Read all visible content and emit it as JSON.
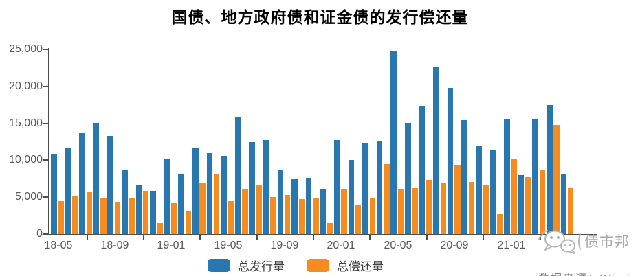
{
  "title": "国债、地方政府债和证金债的发行偿还量",
  "colors": {
    "issuance": "#2878AF",
    "repayment": "#F68B1F",
    "axis": "#4D4D4D",
    "tick_label": "#595959",
    "watermark": "#A8A8A8"
  },
  "legend": [
    {
      "name": "总发行量"
    },
    {
      "name": "总偿还量"
    }
  ],
  "watermark": {
    "brand": "债市邦",
    "icon": "wechat-chat-bubbles-icon"
  },
  "source_note": "数据来源：Wind",
  "y_axis": {
    "tick_labels": [
      "0",
      "5,000",
      "10,000",
      "15,000",
      "20,000",
      "25,000"
    ],
    "max": 25000
  },
  "x_axis": {
    "tick_labels": [
      "18-05",
      "18-09",
      "19-01",
      "19-05",
      "19-09",
      "20-01",
      "20-05",
      "20-09",
      "21-01"
    ]
  },
  "chart_data": {
    "type": "bar",
    "title": "国债、地方政府债和证金债的发行偿还量",
    "categories": [
      "18-05",
      "18-06",
      "18-07",
      "18-08",
      "18-09",
      "18-10",
      "18-11",
      "18-12",
      "19-01",
      "19-02",
      "19-03",
      "19-04",
      "19-05",
      "19-06",
      "19-07",
      "19-08",
      "19-09",
      "19-10",
      "19-11",
      "19-12",
      "20-01",
      "20-02",
      "20-03",
      "20-04",
      "20-05",
      "20-06",
      "20-07",
      "20-08",
      "20-09",
      "20-10",
      "20-11",
      "20-12",
      "21-01",
      "21-02",
      "21-03",
      "21-04",
      "21-05"
    ],
    "series": [
      {
        "name": "总发行量",
        "color": "#2878AF",
        "values": [
          10800,
          11700,
          13800,
          15100,
          13300,
          8600,
          6700,
          5900,
          10100,
          8100,
          11600,
          11000,
          10600,
          15800,
          12500,
          12700,
          8700,
          7400,
          7600,
          6000,
          12700,
          10000,
          12300,
          12600,
          24700,
          15100,
          17300,
          22700,
          19800,
          15400,
          11900,
          11300,
          15500,
          8000,
          15500,
          17500,
          8100
        ]
      },
      {
        "name": "总偿还量",
        "color": "#F68B1F",
        "values": [
          4500,
          5100,
          5800,
          4800,
          4400,
          4900,
          5900,
          1500,
          4200,
          3200,
          6900,
          8100,
          4500,
          6000,
          6600,
          5000,
          5300,
          4700,
          4800,
          1500,
          6000,
          3900,
          4800,
          9500,
          6000,
          6200,
          7300,
          7000,
          9400,
          7100,
          6600,
          2700,
          10200,
          7700,
          8700,
          14800,
          6200
        ]
      }
    ],
    "xlabel": "",
    "ylabel": "",
    "ylim": [
      0,
      25000
    ],
    "grid": false,
    "legend_position": "bottom"
  }
}
